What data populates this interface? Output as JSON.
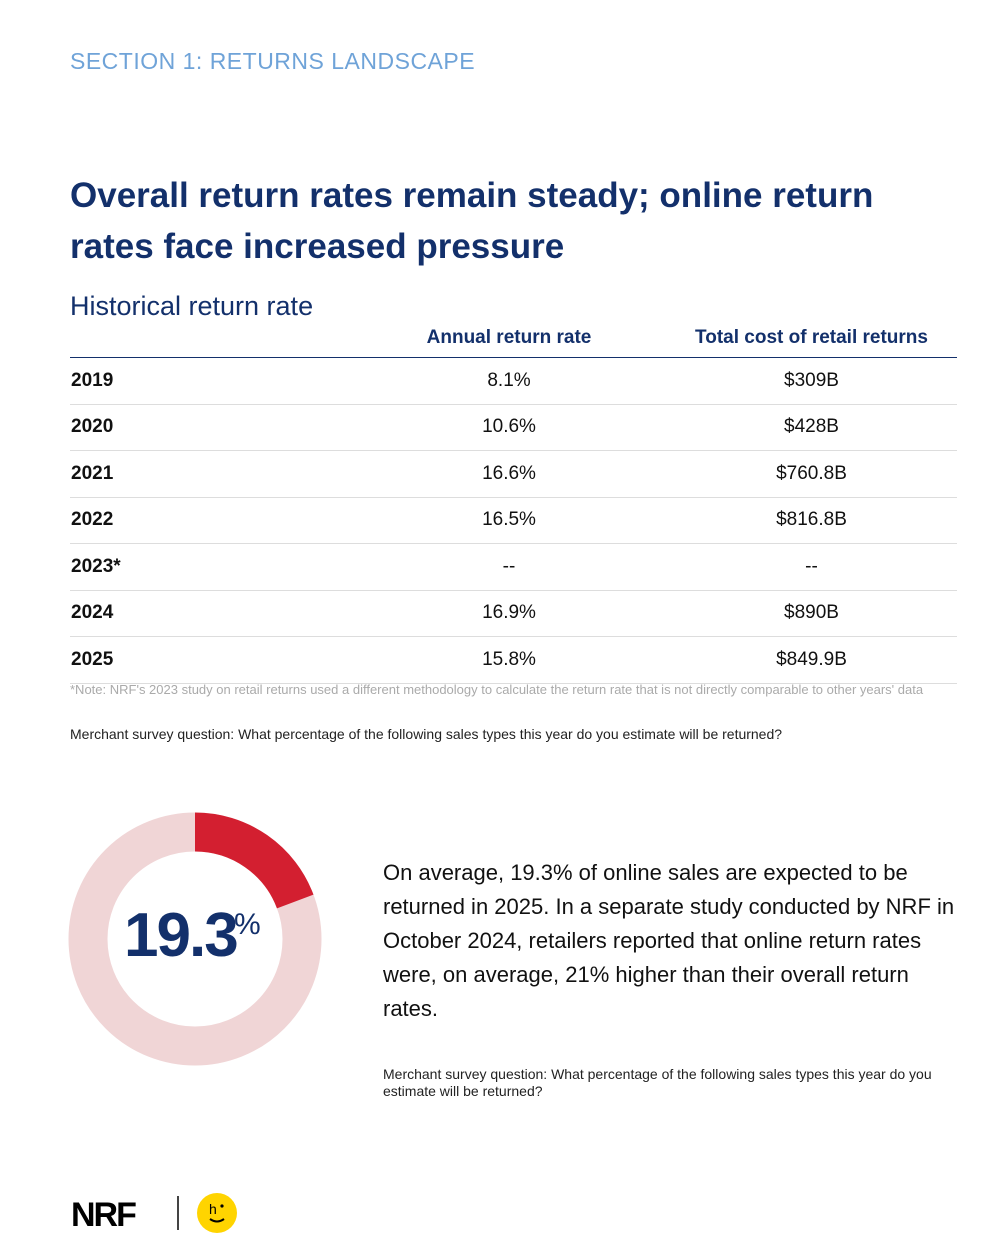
{
  "section": "SECTION 1: RETURNS LANDSCAPE",
  "title": "Overall return rates remain steady; online return rates face increased pressure",
  "table": {
    "subtitle": "Historical return rate",
    "headers": [
      "Annual return rate",
      "Total cost of retail returns"
    ],
    "rows": [
      [
        "2019",
        "8.1%",
        "$309B"
      ],
      [
        "2020",
        "10.6%",
        "$428B"
      ],
      [
        "2021",
        "16.6%",
        "$760.8B"
      ],
      [
        "2022",
        "16.5%",
        "$816.8B"
      ],
      [
        "2023*",
        "--",
        "--"
      ],
      [
        "2024",
        "16.9%",
        "$890B"
      ],
      [
        "2025",
        "15.8%",
        "$849.9B"
      ]
    ]
  },
  "note": "*Note: NRF's 2023 study on retail returns used a different methodology to calculate the return rate that is not directly comparable to other years' data",
  "question1": "Merchant survey question: What percentage of the following sales types this year do you estimate will be returned?",
  "donut": {
    "value": 19.3,
    "number": "19.3",
    "suffix": "%",
    "fill_color": "#d31f30",
    "track_color": "#f0d5d6"
  },
  "paragraph": "On average, 19.3% of online sales are expected to be returned in 2025. In a separate study conducted by NRF in October 2024, retailers reported that online return rates were, on average, 21% higher than their overall return rates.",
  "question2": "Merchant survey question: What percentage of the following sales types this year do you estimate will be returned?",
  "footer": {
    "logo": "NRF",
    "partner_logo": "h·"
  }
}
